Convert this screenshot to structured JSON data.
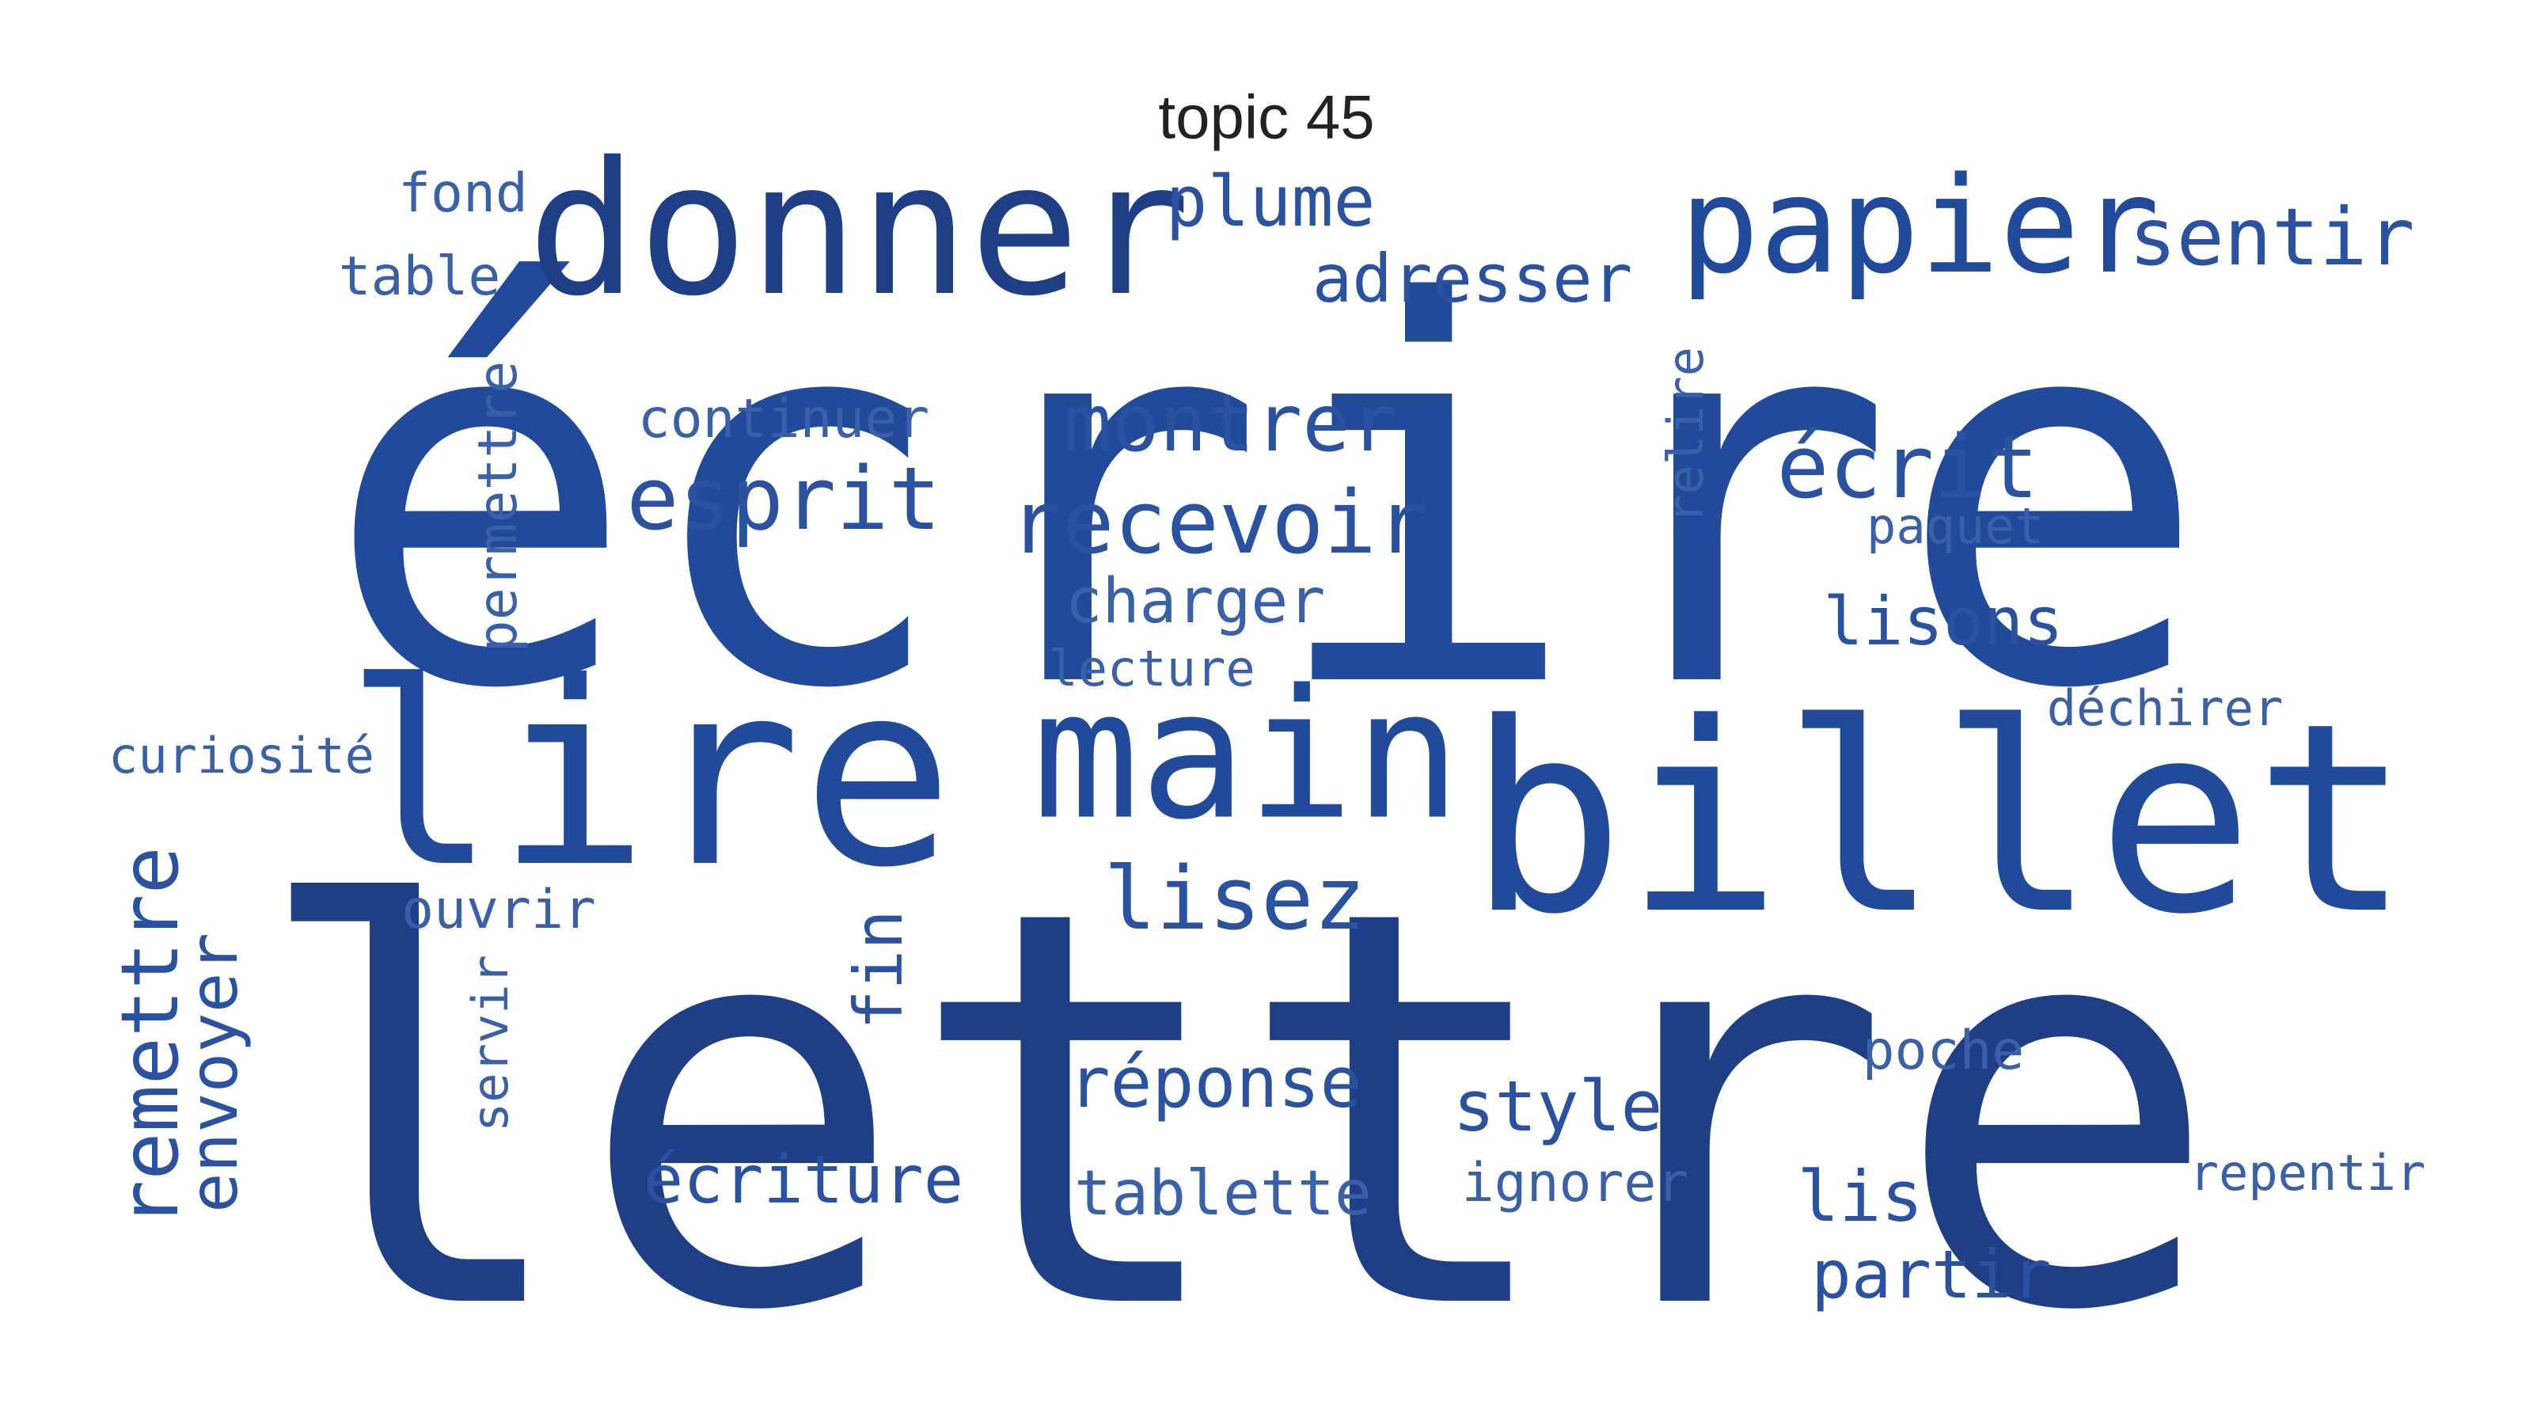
{
  "title": "topic 45",
  "colors": {
    "primary": "#224A9A",
    "dark": "#1E3F86",
    "light": "#3A60AA"
  },
  "words": [
    {
      "text": "écrire",
      "weight": 1.0
    },
    {
      "text": "lettre",
      "weight": 1.0
    },
    {
      "text": "billet",
      "weight": 0.55
    },
    {
      "text": "lire",
      "weight": 0.52
    },
    {
      "text": "main",
      "weight": 0.45
    },
    {
      "text": "donner",
      "weight": 0.4
    },
    {
      "text": "papier",
      "weight": 0.33
    },
    {
      "text": "sentir",
      "weight": 0.2
    },
    {
      "text": "plume",
      "weight": 0.17
    },
    {
      "text": "adresser",
      "weight": 0.17
    },
    {
      "text": "fond",
      "weight": 0.15
    },
    {
      "text": "table",
      "weight": 0.15
    },
    {
      "text": "continuer",
      "weight": 0.15
    },
    {
      "text": "montrer",
      "weight": 0.2
    },
    {
      "text": "esprit",
      "weight": 0.22
    },
    {
      "text": "recevoir",
      "weight": 0.22
    },
    {
      "text": "permettre",
      "weight": 0.15
    },
    {
      "text": "relire",
      "weight": 0.14
    },
    {
      "text": "écrit",
      "weight": 0.22
    },
    {
      "text": "paquet",
      "weight": 0.14
    },
    {
      "text": "charger",
      "weight": 0.17
    },
    {
      "text": "lecture",
      "weight": 0.14
    },
    {
      "text": "lisons",
      "weight": 0.18
    },
    {
      "text": "déchirer",
      "weight": 0.14
    },
    {
      "text": "curiosité",
      "weight": 0.14
    },
    {
      "text": "ouvrir",
      "weight": 0.15
    },
    {
      "text": "lisez",
      "weight": 0.22
    },
    {
      "text": "fin",
      "weight": 0.17
    },
    {
      "text": "remettre",
      "weight": 0.2
    },
    {
      "text": "envoyer",
      "weight": 0.17
    },
    {
      "text": "servir",
      "weight": 0.14
    },
    {
      "text": "poche",
      "weight": 0.15
    },
    {
      "text": "réponse",
      "weight": 0.18
    },
    {
      "text": "style",
      "weight": 0.18
    },
    {
      "text": "écriture",
      "weight": 0.18
    },
    {
      "text": "tablette",
      "weight": 0.16
    },
    {
      "text": "ignorer",
      "weight": 0.15
    },
    {
      "text": "lis",
      "weight": 0.17
    },
    {
      "text": "repentir",
      "weight": 0.14
    },
    {
      "text": "partir",
      "weight": 0.18
    }
  ]
}
